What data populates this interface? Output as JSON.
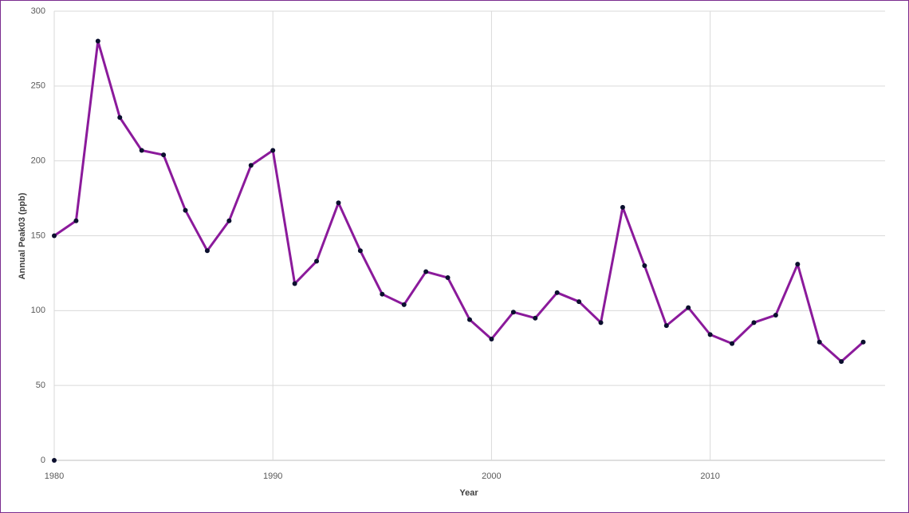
{
  "chart_data": {
    "type": "line",
    "x_label": "Year",
    "y_label": "Annual Peak03  (ppb)",
    "series": [
      {
        "color": "#8b1a9b",
        "marker_color": "#0b0f2e",
        "line": true,
        "x": [
          1980,
          1981,
          1982,
          1983,
          1984,
          1985,
          1986,
          1987,
          1988,
          1989,
          1990,
          1991,
          1992,
          1993,
          1994,
          1995,
          1996,
          1997,
          1998,
          1999,
          2000,
          2001,
          2002,
          2003,
          2004,
          2005,
          2006,
          2007,
          2008,
          2009,
          2010,
          2011,
          2012,
          2013,
          2014,
          2015,
          2016,
          2017
        ],
        "values": [
          150,
          160,
          280,
          229,
          207,
          204,
          167,
          140,
          160,
          197,
          207,
          118,
          133,
          172,
          140,
          111,
          104,
          126,
          122,
          94,
          81,
          99,
          95,
          112,
          106,
          92,
          169,
          130,
          90,
          102,
          84,
          78,
          92,
          97,
          131,
          79,
          66,
          79
        ]
      },
      {
        "color": "#8b1a9b",
        "marker_color": "#0b0f2e",
        "line": false,
        "x": [
          1980
        ],
        "values": [
          0
        ]
      }
    ],
    "xlim": [
      1980,
      2018
    ],
    "xticks": [
      1980,
      1990,
      2000,
      2010
    ],
    "ylim": [
      0,
      300
    ],
    "yticks": [
      0,
      50,
      100,
      150,
      200,
      250,
      300
    ],
    "grid": true,
    "frame_color": "#7b2d8e"
  }
}
